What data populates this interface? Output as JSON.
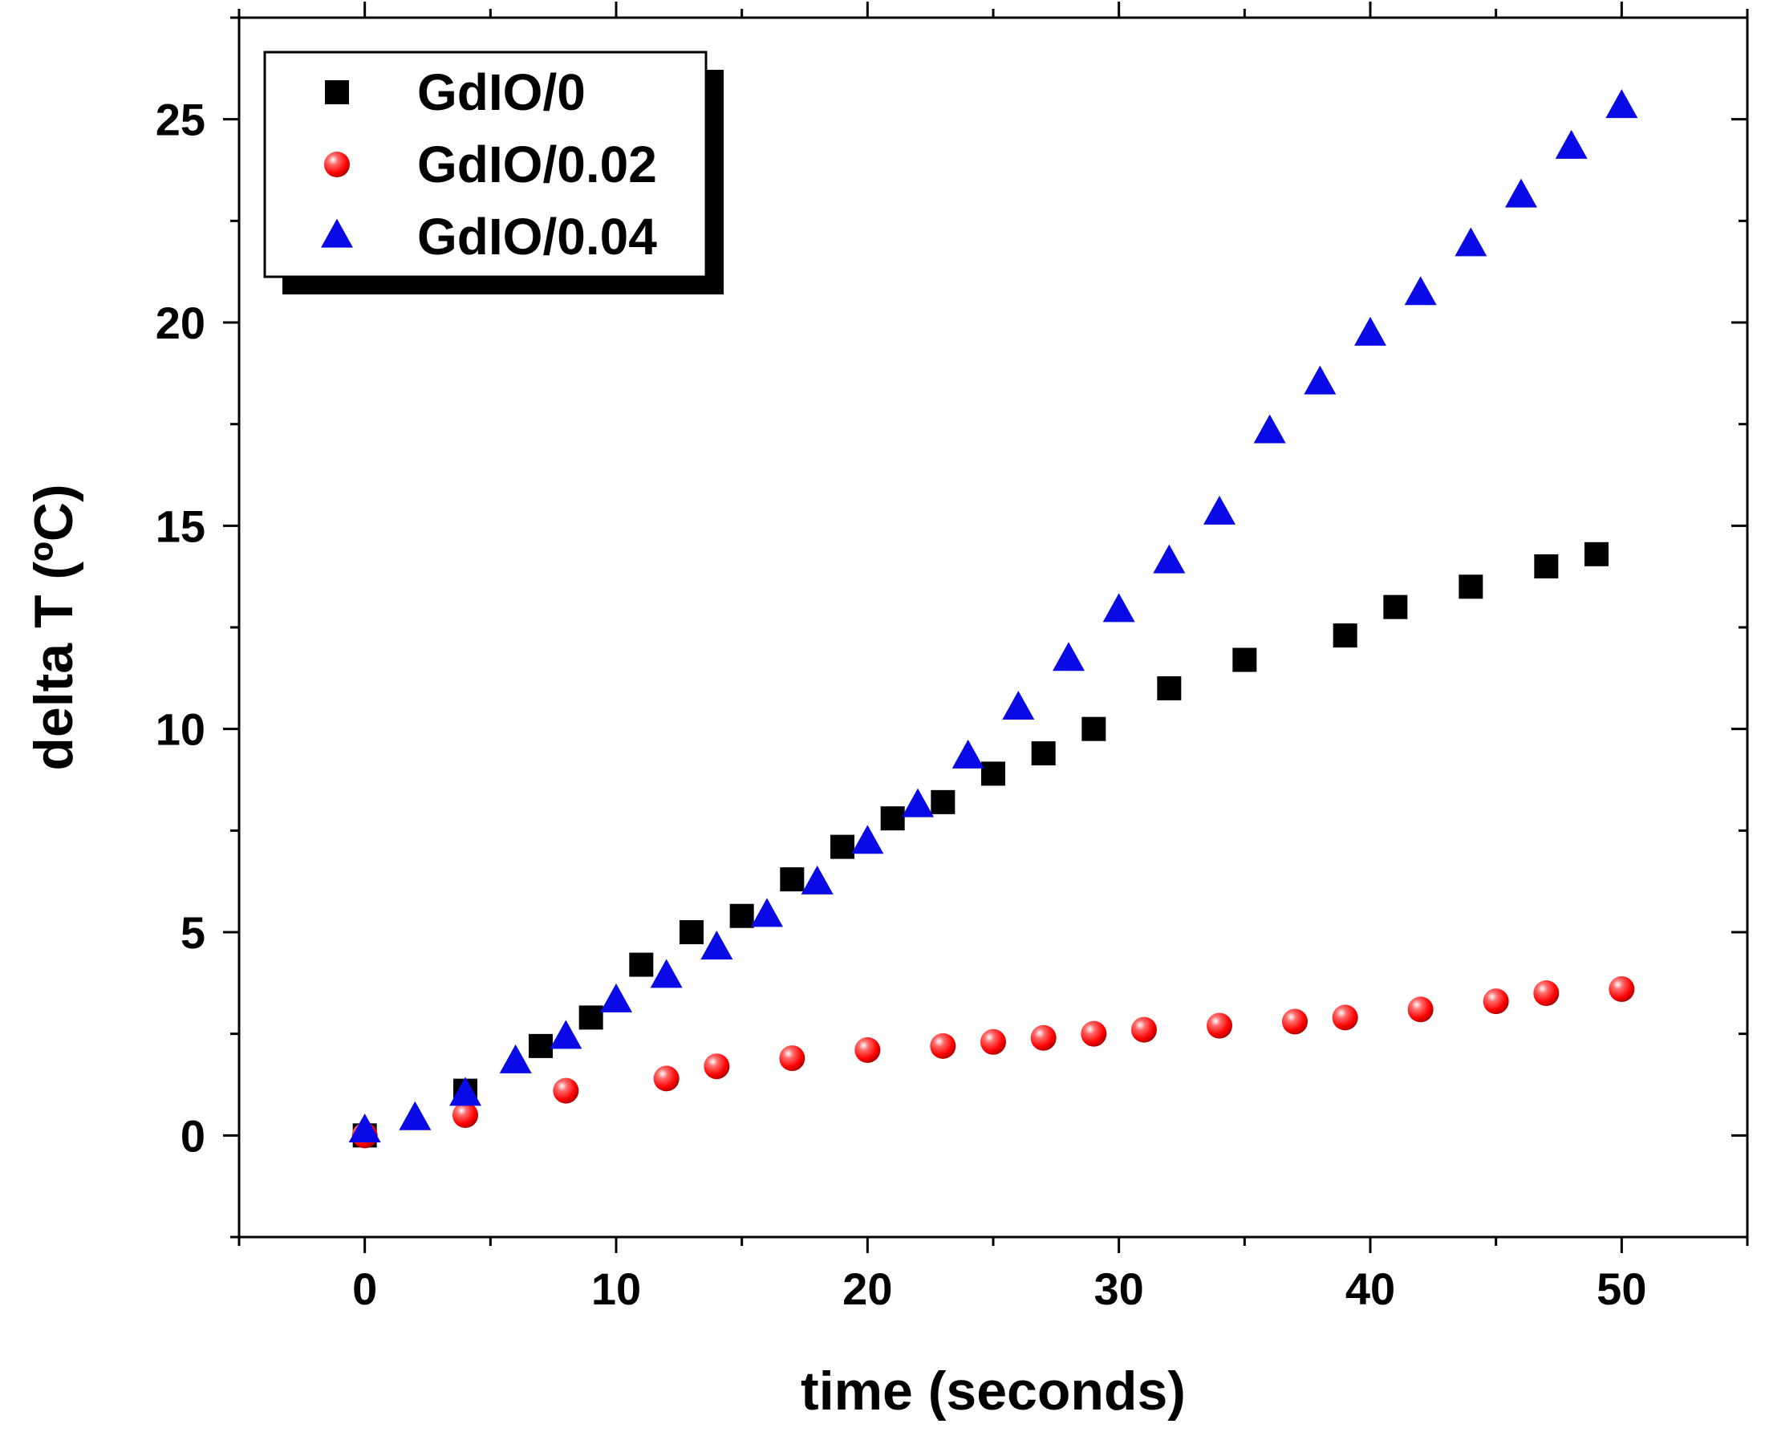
{
  "chart_data": {
    "type": "scatter",
    "title": "",
    "xlabel": "time (seconds)",
    "ylabel": "delta T (ºC)",
    "xlim": [
      -5,
      55
    ],
    "ylim": [
      -2.5,
      27.5
    ],
    "xticks": [
      0,
      10,
      20,
      30,
      40,
      50
    ],
    "yticks": [
      0,
      5,
      10,
      15,
      20,
      25
    ],
    "xtick_labels": [
      "0",
      "10",
      "20",
      "30",
      "40",
      "50"
    ],
    "ytick_labels": [
      "0",
      "5",
      "10",
      "15",
      "20",
      "25"
    ],
    "grid": false,
    "legend_position": "top-left",
    "series": [
      {
        "name": "GdIO/0",
        "marker": "square",
        "color": "#000000",
        "x": [
          0,
          4,
          7,
          9,
          11,
          13,
          15,
          17,
          19,
          21,
          23,
          25,
          27,
          29,
          32,
          35,
          39,
          41,
          44,
          47,
          49
        ],
        "y": [
          0,
          1.1,
          2.2,
          2.9,
          4.2,
          5.0,
          5.4,
          6.3,
          7.1,
          7.8,
          8.2,
          8.9,
          9.4,
          10.0,
          11.0,
          11.7,
          12.3,
          13.0,
          13.5,
          14.0,
          14.3
        ]
      },
      {
        "name": "GdIO/0.02",
        "marker": "circle",
        "color": "#ff1a1a",
        "x": [
          0,
          4,
          8,
          12,
          14,
          17,
          20,
          23,
          25,
          27,
          29,
          31,
          34,
          37,
          39,
          42,
          45,
          47,
          50
        ],
        "y": [
          0,
          0.5,
          1.1,
          1.4,
          1.7,
          1.9,
          2.1,
          2.2,
          2.3,
          2.4,
          2.5,
          2.6,
          2.7,
          2.8,
          2.9,
          3.1,
          3.3,
          3.5,
          3.6
        ]
      },
      {
        "name": "GdIO/0.04",
        "marker": "triangle",
        "color": "#0a0ae6",
        "x": [
          0,
          2,
          4,
          6,
          8,
          10,
          12,
          14,
          16,
          18,
          20,
          22,
          24,
          26,
          28,
          30,
          32,
          34,
          36,
          38,
          40,
          42,
          44,
          46,
          48,
          50
        ],
        "y": [
          0.1,
          0.4,
          1.0,
          1.8,
          2.4,
          3.3,
          3.9,
          4.6,
          5.4,
          6.2,
          7.2,
          8.1,
          9.3,
          10.5,
          11.7,
          12.9,
          14.1,
          15.3,
          17.3,
          18.5,
          19.7,
          20.7,
          21.9,
          23.1,
          24.3,
          25.3
        ]
      }
    ]
  }
}
